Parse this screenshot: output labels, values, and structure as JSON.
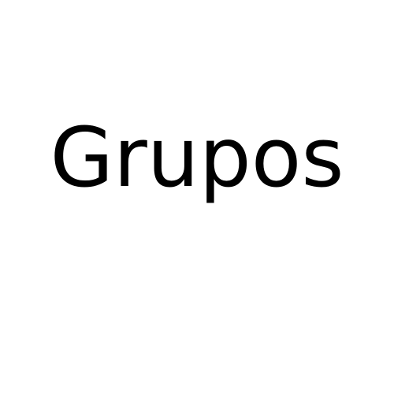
{
  "content": {
    "text": "Grupos"
  },
  "colors": {
    "background": "#ffffff",
    "text": "#000000"
  }
}
